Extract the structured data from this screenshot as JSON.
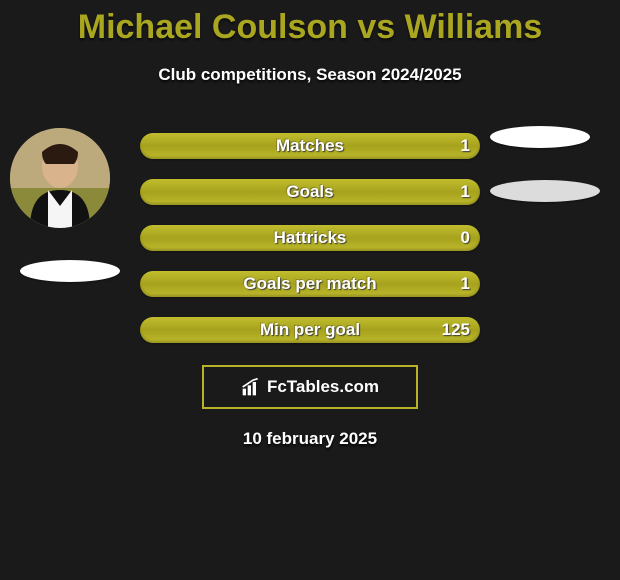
{
  "title": "Michael Coulson vs Williams",
  "subtitle": "Club competitions, Season 2024/2025",
  "date": "10 february 2025",
  "brand": {
    "text": "FcTables.com"
  },
  "colors": {
    "accent": "#aaa61f",
    "bar_fill": "#b7b226",
    "background": "#1a1a1a",
    "text": "#ffffff"
  },
  "stats": [
    {
      "label": "Matches",
      "value": "1"
    },
    {
      "label": "Goals",
      "value": "1"
    },
    {
      "label": "Hattricks",
      "value": "0"
    },
    {
      "label": "Goals per match",
      "value": "1"
    },
    {
      "label": "Min per goal",
      "value": "125"
    }
  ]
}
